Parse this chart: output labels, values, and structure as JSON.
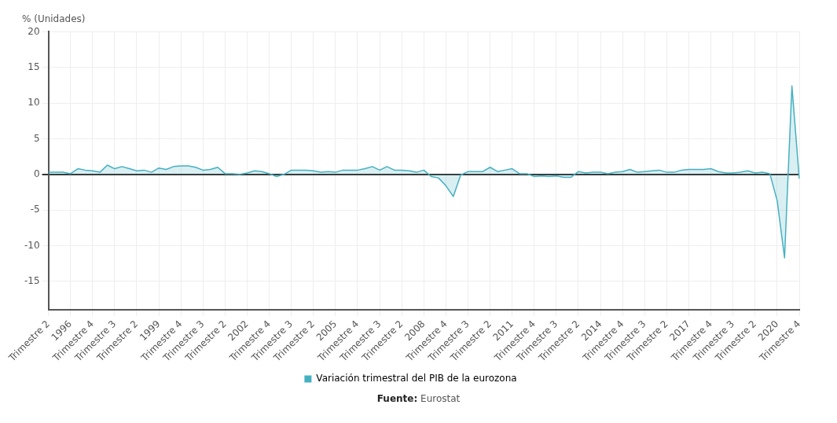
{
  "chart_data": {
    "type": "area",
    "ylabel": "% (Unidades)",
    "categories": [
      "Trimestre 2",
      null,
      null,
      "1996",
      null,
      null,
      "Trimestre 4",
      null,
      null,
      "Trimestre 3",
      null,
      null,
      "Trimestre 2",
      null,
      null,
      "1999",
      null,
      null,
      "Trimestre 4",
      null,
      null,
      "Trimestre 3",
      null,
      null,
      "Trimestre 2",
      null,
      null,
      "2002",
      null,
      null,
      "Trimestre 4",
      null,
      null,
      "Trimestre 3",
      null,
      null,
      "Trimestre 2",
      null,
      null,
      "2005",
      null,
      null,
      "Trimestre 4",
      null,
      null,
      "Trimestre 3",
      null,
      null,
      "Trimestre 2",
      null,
      null,
      "2008",
      null,
      null,
      "Trimestre 4",
      null,
      null,
      "Trimestre 3",
      null,
      null,
      "Trimestre 2",
      null,
      null,
      "2011",
      null,
      null,
      "Trimestre 4",
      null,
      null,
      "Trimestre 3",
      null,
      null,
      "Trimestre 2",
      null,
      null,
      "2014",
      null,
      null,
      "Trimestre 4",
      null,
      null,
      "Trimestre 3",
      null,
      null,
      "Trimestre 2",
      null,
      null,
      "2017",
      null,
      null,
      "Trimestre 4",
      null,
      null,
      "Trimestre 3",
      null,
      null,
      "Trimestre 2",
      null,
      null,
      "2020",
      null,
      null,
      "Trimestre 4"
    ],
    "series": [
      {
        "name": "Variación trimestral del PIB de la eurozona",
        "color": "#45b0c0",
        "values": [
          0.3,
          0.3,
          0.3,
          0.1,
          0.8,
          0.6,
          0.5,
          0.3,
          1.3,
          0.8,
          1.1,
          0.8,
          0.5,
          0.6,
          0.3,
          0.9,
          0.7,
          1.1,
          1.2,
          1.2,
          1.0,
          0.6,
          0.7,
          1.0,
          0.1,
          0.1,
          0.0,
          0.2,
          0.5,
          0.4,
          0.1,
          -0.3,
          0.0,
          0.6,
          0.6,
          0.6,
          0.5,
          0.3,
          0.4,
          0.3,
          0.6,
          0.6,
          0.6,
          0.8,
          1.1,
          0.6,
          1.1,
          0.6,
          0.6,
          0.5,
          0.3,
          0.6,
          -0.3,
          -0.5,
          -1.6,
          -3.1,
          -0.1,
          0.4,
          0.4,
          0.4,
          1.0,
          0.4,
          0.6,
          0.8,
          0.1,
          0.1,
          -0.3,
          -0.2,
          -0.3,
          -0.2,
          -0.4,
          -0.4,
          0.4,
          0.2,
          0.3,
          0.3,
          0.1,
          0.3,
          0.4,
          0.7,
          0.3,
          0.4,
          0.5,
          0.6,
          0.3,
          0.3,
          0.6,
          0.7,
          0.7,
          0.7,
          0.8,
          0.4,
          0.2,
          0.2,
          0.3,
          0.5,
          0.2,
          0.3,
          0.1,
          -3.7,
          -11.7,
          12.4,
          -0.6
        ]
      }
    ],
    "ylim": [
      -19,
      20
    ],
    "yticks": [
      -15,
      -10,
      -5,
      0,
      5,
      10,
      15,
      20
    ],
    "grid": true,
    "legend": "bottom",
    "marker": "none",
    "annotations": [
      "Fuente: Eurostat"
    ]
  }
}
